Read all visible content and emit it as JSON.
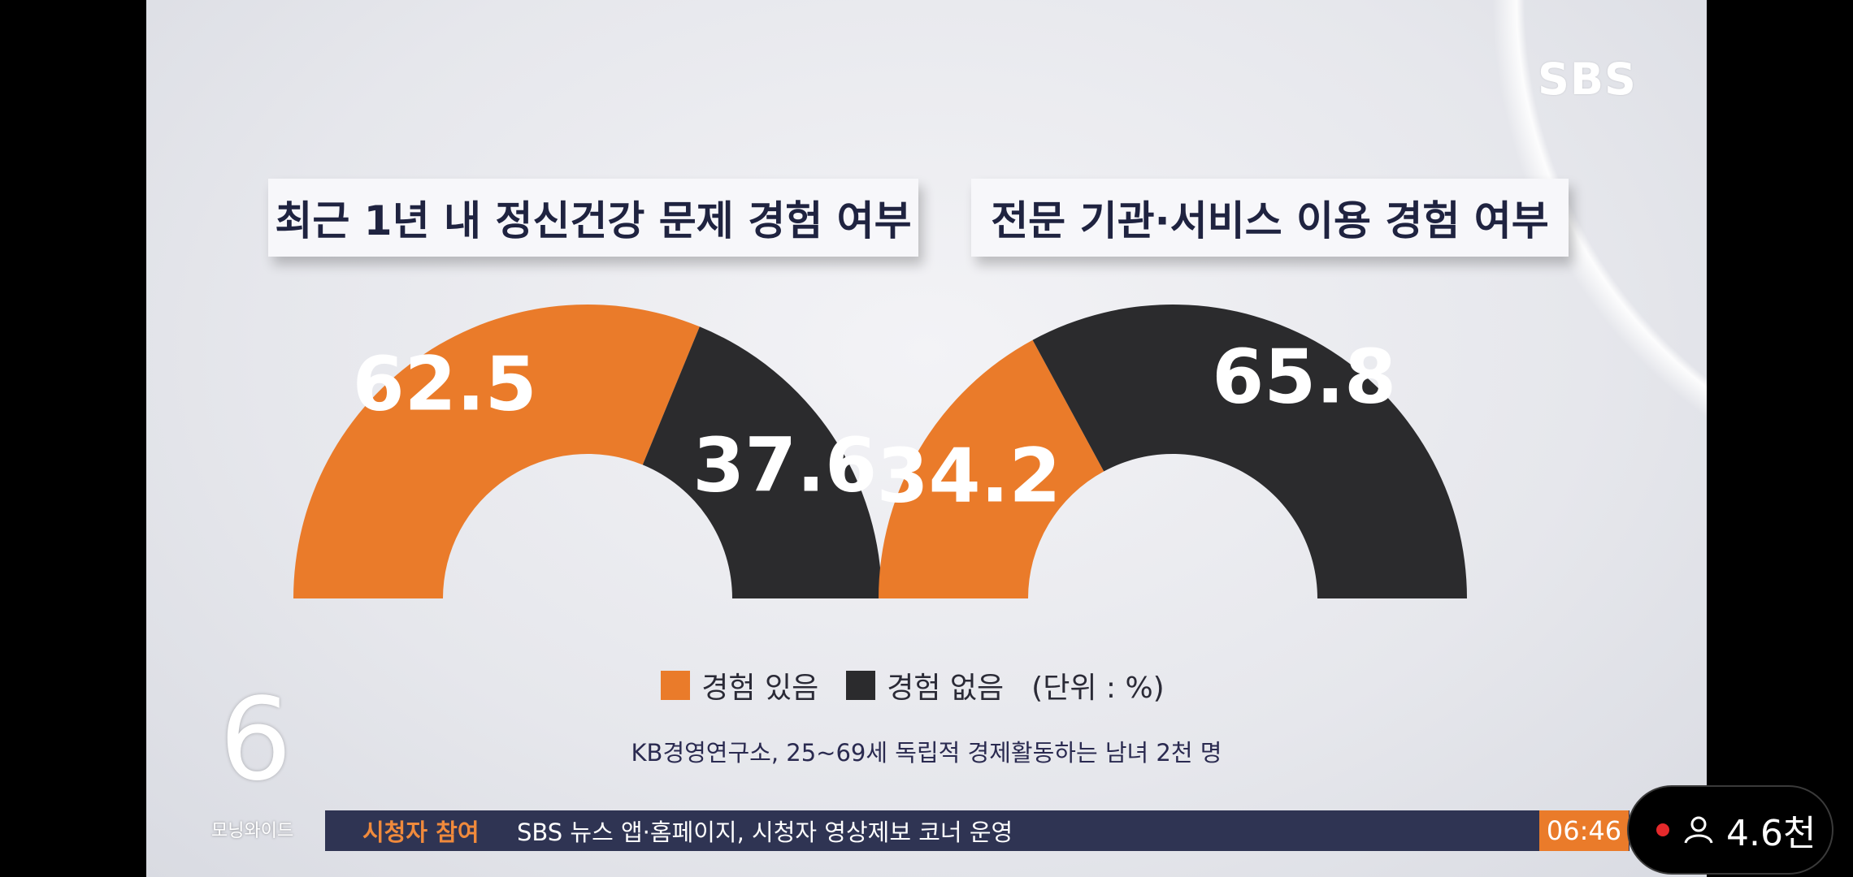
{
  "branding": {
    "logo": "SBS",
    "channel_number": "6",
    "program_name": "모닝와이드"
  },
  "ticker": {
    "tag": "시청자 참여",
    "message": "SBS 뉴스 앱·홈페이지, 시청자 영상제보 코너 운영",
    "time": "06:46"
  },
  "viewers": {
    "count": "4.6천",
    "icon": "person-icon"
  },
  "legend": {
    "yes": "경험 있음",
    "no": "경험 없음",
    "unit": "(단위 : %)"
  },
  "source": "KB경영연구소, 25~69세 독립적 경제활동하는 남녀 2천 명",
  "colors": {
    "experienced": "#ea7b2a",
    "not_experienced": "#2b2b2d"
  },
  "chart_data": [
    {
      "type": "pie",
      "title": "최근 1년 내 정신건강 문제 경험 여부",
      "categories": [
        "경험 있음",
        "경험 없음"
      ],
      "values": [
        62.5,
        37.6
      ],
      "labels": [
        "62.5",
        "37.6"
      ],
      "unit": "%"
    },
    {
      "type": "pie",
      "title": "전문 기관·서비스 이용 경험 여부",
      "categories": [
        "경험 있음",
        "경험 없음"
      ],
      "values": [
        34.2,
        65.8
      ],
      "labels": [
        "34.2",
        "65.8"
      ],
      "unit": "%"
    }
  ]
}
